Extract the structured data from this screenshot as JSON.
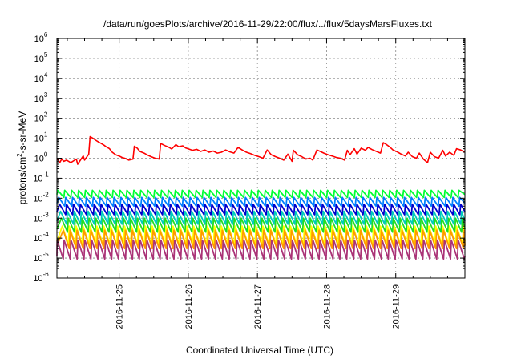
{
  "chart_data": {
    "type": "line",
    "title": "/data/run/goesPlots/archive/2016-11-29/22:00/flux/../flux/5daysMarsFluxes.txt",
    "xlabel": "Coordinated Universal Time (UTC)",
    "ylabel": "protons/cm2-s-sr-MeV",
    "ylabel_parts": {
      "pre": "protons/cm",
      "sup": "2",
      "post": "-s-sr-MeV"
    },
    "yscale": "log",
    "ylim_exp": [
      -6,
      6
    ],
    "y_tick_base": "10",
    "y_tick_exponents": [
      "-6",
      "-5",
      "-4",
      "-3",
      "-2",
      "-1",
      "0",
      "1",
      "2",
      "3",
      "4",
      "5",
      "6"
    ],
    "x_range_days": [
      24.1,
      30.0
    ],
    "x_ticks": [
      {
        "day": 25,
        "label": "2016-11-25"
      },
      {
        "day": 26,
        "label": "2016-11-26"
      },
      {
        "day": 27,
        "label": "2016-11-27"
      },
      {
        "day": 28,
        "label": "2016-11-28"
      },
      {
        "day": 29,
        "label": "2016-11-29"
      }
    ],
    "grid": true,
    "series": [
      {
        "color": "#ff0000",
        "x": [
          24.1,
          24.14,
          24.17,
          24.2,
          24.24,
          24.3,
          24.38,
          24.4,
          24.48,
          24.5,
          24.56,
          24.58,
          24.62,
          24.66,
          24.7,
          24.74,
          24.78,
          24.82,
          24.86,
          24.9,
          24.95,
          25.0,
          25.04,
          25.08,
          25.14,
          25.2,
          25.22,
          25.26,
          25.3,
          25.36,
          25.4,
          25.46,
          25.52,
          25.58,
          25.6,
          25.66,
          25.72,
          25.76,
          25.82,
          25.86,
          25.92,
          25.96,
          26.02,
          26.06,
          26.12,
          26.18,
          26.24,
          26.3,
          26.36,
          26.42,
          26.48,
          26.54,
          26.6,
          26.66,
          26.72,
          26.78,
          26.84,
          26.9,
          26.96,
          27.02,
          27.08,
          27.14,
          27.2,
          27.26,
          27.32,
          27.38,
          27.44,
          27.5,
          27.52,
          27.58,
          27.64,
          27.7,
          27.76,
          27.8,
          27.86,
          27.92,
          27.96,
          28.02,
          28.08,
          28.14,
          28.2,
          28.26,
          28.3,
          28.34,
          28.4,
          28.44,
          28.5,
          28.56,
          28.6,
          28.66,
          28.72,
          28.78,
          28.82,
          28.86,
          28.92,
          28.96,
          29.02,
          29.08,
          29.14,
          29.18,
          29.24,
          29.3,
          29.34,
          29.4,
          29.46,
          29.5,
          29.56,
          29.62,
          29.68,
          29.72,
          29.78,
          29.84,
          29.88,
          29.94,
          30.0
        ],
        "y": [
          1.0,
          0.6,
          0.9,
          0.7,
          0.8,
          0.6,
          0.9,
          0.5,
          1.3,
          0.8,
          1.6,
          12,
          10,
          8,
          6.5,
          5.5,
          4.5,
          3.6,
          3.0,
          2.0,
          1.5,
          1.3,
          1.1,
          1.0,
          0.8,
          0.9,
          4.0,
          3.2,
          2.2,
          1.8,
          1.5,
          1.2,
          1.0,
          0.9,
          5.5,
          4.3,
          3.5,
          2.9,
          4.8,
          3.8,
          4.2,
          3.3,
          2.8,
          2.5,
          2.8,
          2.2,
          2.6,
          2.0,
          2.3,
          1.8,
          2.0,
          2.6,
          2.1,
          1.8,
          3.5,
          2.6,
          2.0,
          1.7,
          1.4,
          1.2,
          1.0,
          2.6,
          1.5,
          1.2,
          1.0,
          0.8,
          1.6,
          0.7,
          2.5,
          1.5,
          1.2,
          0.9,
          1.0,
          0.8,
          2.6,
          2.1,
          1.8,
          1.5,
          1.3,
          1.1,
          1.0,
          0.8,
          2.5,
          1.5,
          3.0,
          1.6,
          3.2,
          2.5,
          3.5,
          2.7,
          2.2,
          1.8,
          6.0,
          5.0,
          3.5,
          2.6,
          2.1,
          1.6,
          1.3,
          2.0,
          1.2,
          1.0,
          1.8,
          0.9,
          0.6,
          2.0,
          1.2,
          1.0,
          2.5,
          1.3,
          2.0,
          1.4,
          3.0,
          2.6,
          2.0
        ]
      },
      {
        "color": "#00ff33",
        "periodic": true,
        "period_days": 0.1,
        "peak": 0.025,
        "trough": 0.011
      },
      {
        "color": "#007fff",
        "periodic": true,
        "period_days": 0.1,
        "peak": 0.011,
        "trough": 0.004
      },
      {
        "color": "#0000cc",
        "periodic": true,
        "period_days": 0.1,
        "peak": 0.005,
        "trough": 0.0015
      },
      {
        "color": "#00ccbb",
        "periodic": true,
        "period_days": 0.1,
        "peak": 0.0022,
        "trough": 0.0005
      },
      {
        "color": "#22dd22",
        "periodic": true,
        "period_days": 0.1,
        "peak": 0.001,
        "trough": 0.0002
      },
      {
        "color": "#ffff00",
        "periodic": true,
        "period_days": 0.1,
        "peak": 0.0004,
        "trough": 5e-05
      },
      {
        "color": "#ff9900",
        "periodic": true,
        "period_days": 0.1,
        "peak": 0.00025,
        "trough": 3e-05
      },
      {
        "color": "#aa3377",
        "periodic": true,
        "period_days": 0.1,
        "peak": 8e-05,
        "trough": 9e-06
      }
    ]
  }
}
